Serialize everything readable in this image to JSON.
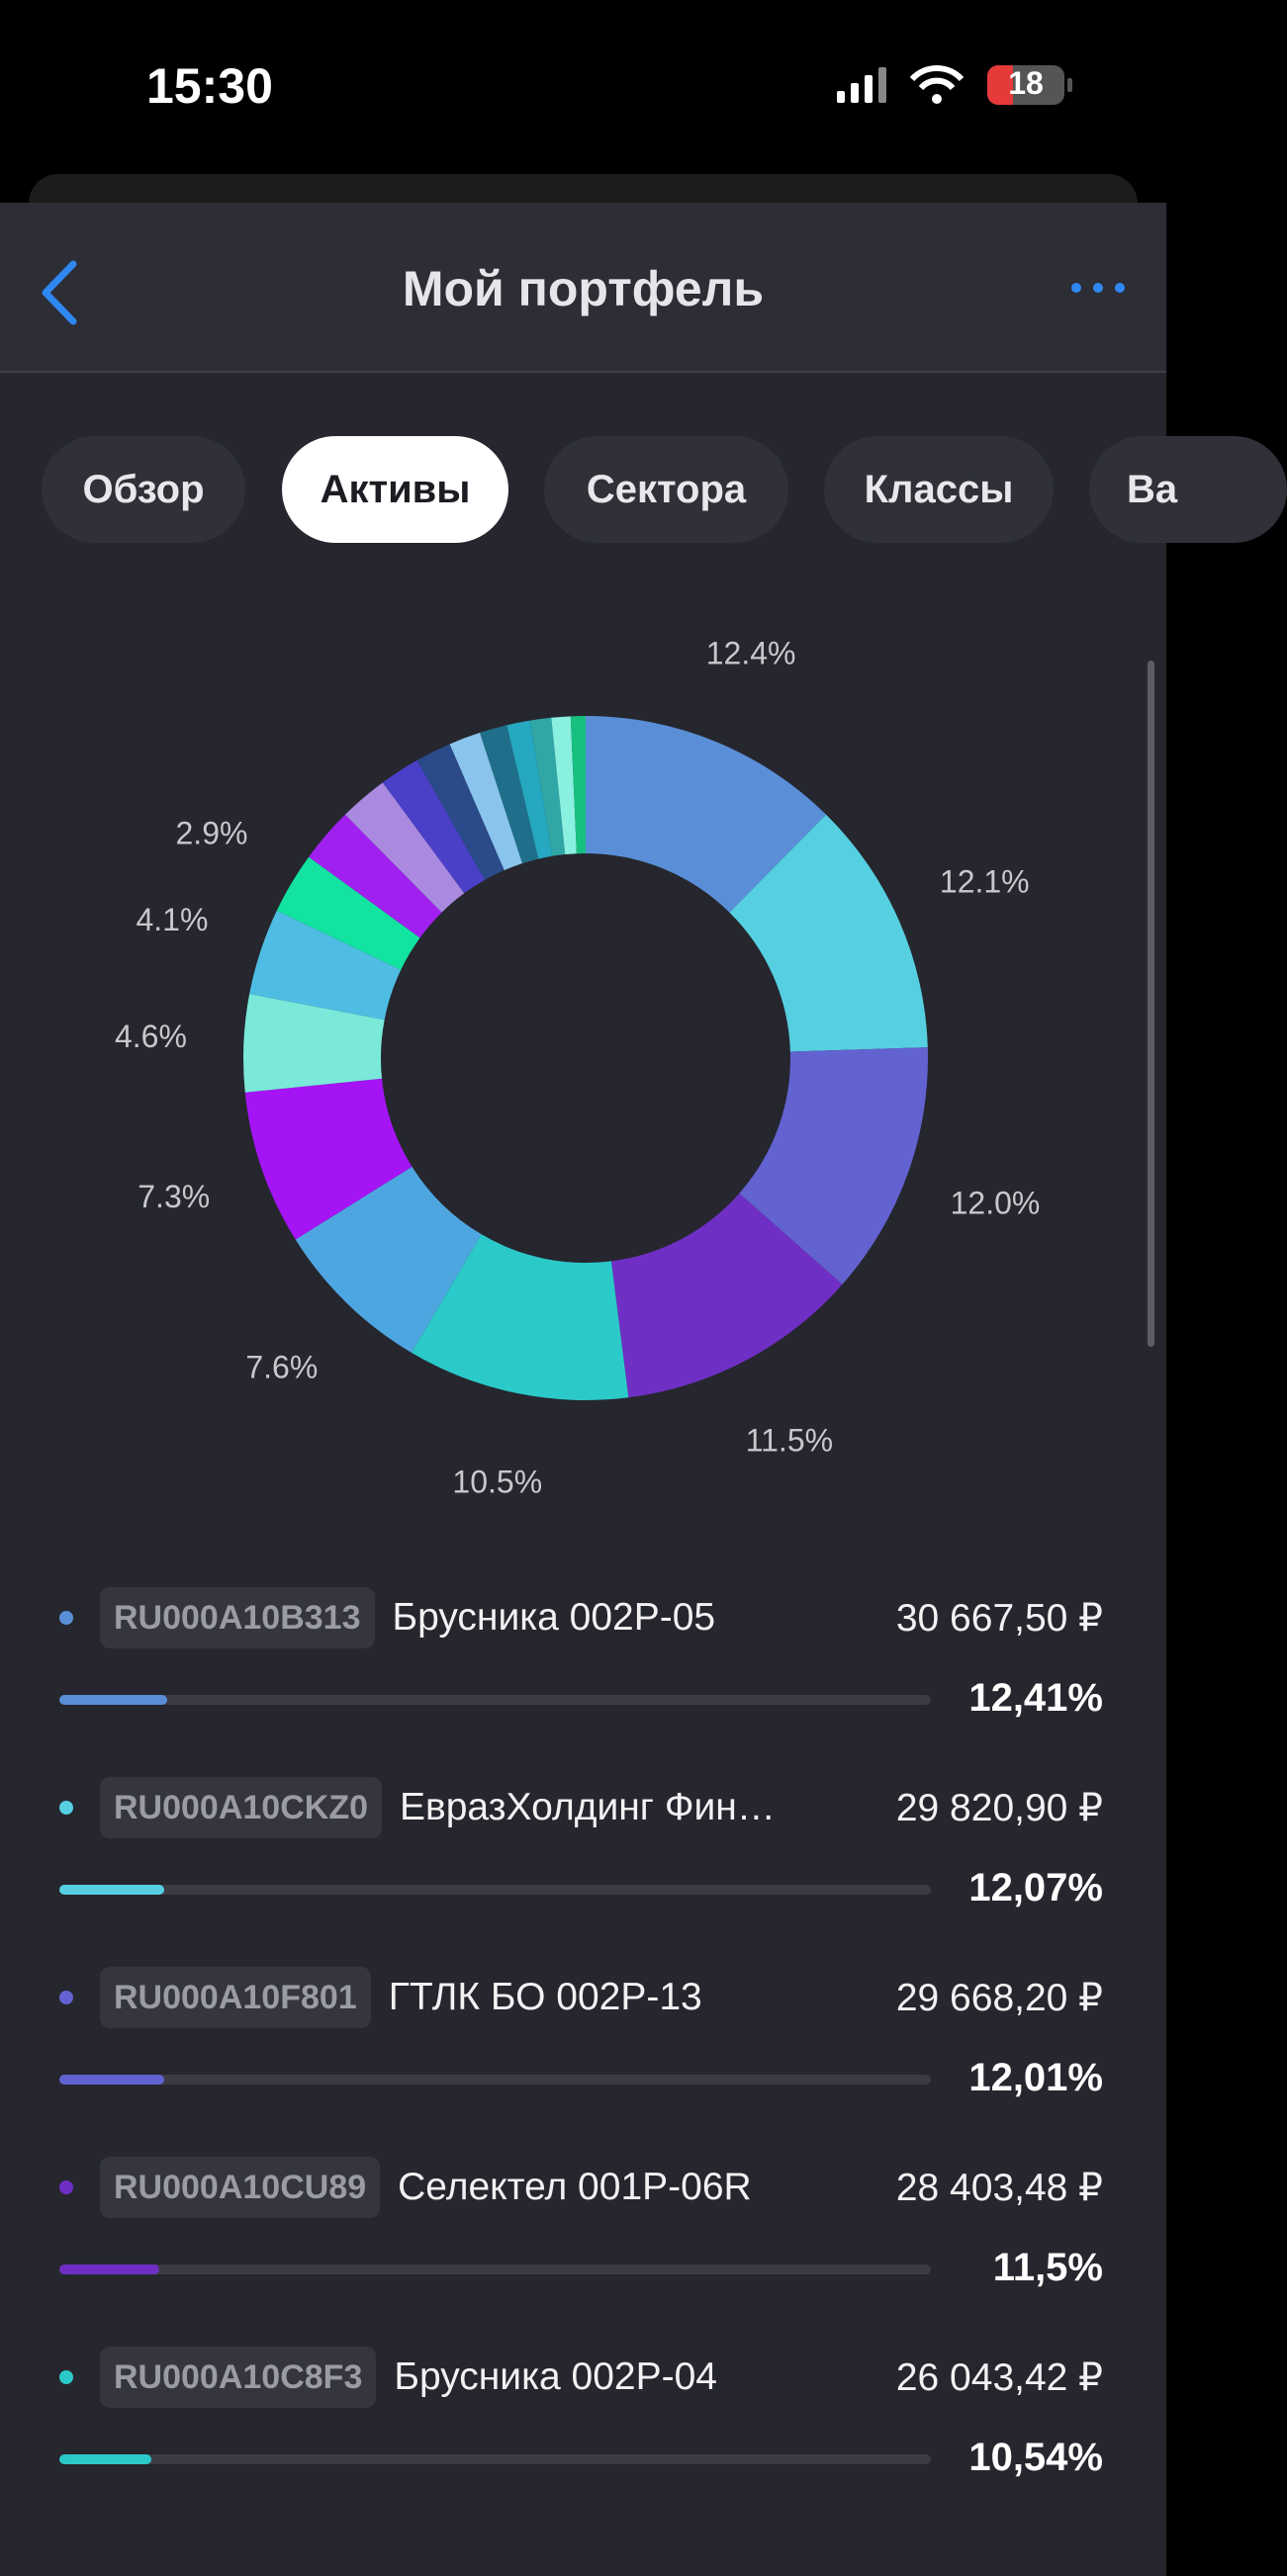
{
  "status_bar": {
    "time": "15:30",
    "battery": "18"
  },
  "header": {
    "title": "Мой портфель"
  },
  "tabs": [
    "Обзор",
    "Активы",
    "Сектора",
    "Классы",
    "Ва"
  ],
  "active_tab": 1,
  "chart_data": {
    "type": "pie",
    "donut": true,
    "values": [
      12.4,
      12.1,
      12.0,
      11.5,
      10.5,
      7.6,
      7.3,
      4.6,
      4.1,
      2.9,
      2.6,
      2.3,
      1.9,
      1.7,
      1.5,
      1.3,
      1.1,
      1.0,
      0.9,
      0.7
    ],
    "value_labels": [
      "12.4%",
      "12.1%",
      "12.0%",
      "11.5%",
      "10.5%",
      "7.6%",
      "7.3%",
      "4.6%",
      "4.1%",
      "2.9%",
      null,
      null,
      null,
      null,
      null,
      null,
      null,
      null,
      null,
      null
    ],
    "colors": [
      "#5a8fd8",
      "#56d0e0",
      "#6262d0",
      "#6f2fc4",
      "#2cc9c9",
      "#4ea6e0",
      "#a414f5",
      "#7ae9da",
      "#4fbde3",
      "#12e3a0",
      "#a020f0",
      "#a98ae0",
      "#4a40c8",
      "#2a4a8a",
      "#8ac4ec",
      "#1f6f8a",
      "#25a8c0",
      "#30a6a6",
      "#8af0e0",
      "#18c080"
    ]
  },
  "holdings": [
    {
      "code": "RU000A10B313",
      "name": "Брусника 002Р-05",
      "price": "30 667,50 ₽",
      "share": 12.41,
      "share_label": "12,41%",
      "color": "#5a8fd8"
    },
    {
      "code": "RU000A10CKZ0",
      "name": "ЕвразХолдинг Фин…",
      "price": "29 820,90 ₽",
      "share": 12.07,
      "share_label": "12,07%",
      "color": "#56d0e0"
    },
    {
      "code": "RU000A10F801",
      "name": "ГТЛК БО 002P-13",
      "price": "29 668,20 ₽",
      "share": 12.01,
      "share_label": "12,01%",
      "color": "#6262d0"
    },
    {
      "code": "RU000A10CU89",
      "name": "Селектел 001P-06R",
      "price": "28 403,48 ₽",
      "share": 11.5,
      "share_label": "11,5%",
      "color": "#6f2fc4"
    },
    {
      "code": "RU000A10C8F3",
      "name": "Брусника 002Р-04",
      "price": "26 043,42 ₽",
      "share": 10.54,
      "share_label": "10,54%",
      "color": "#2cc9c9"
    }
  ]
}
